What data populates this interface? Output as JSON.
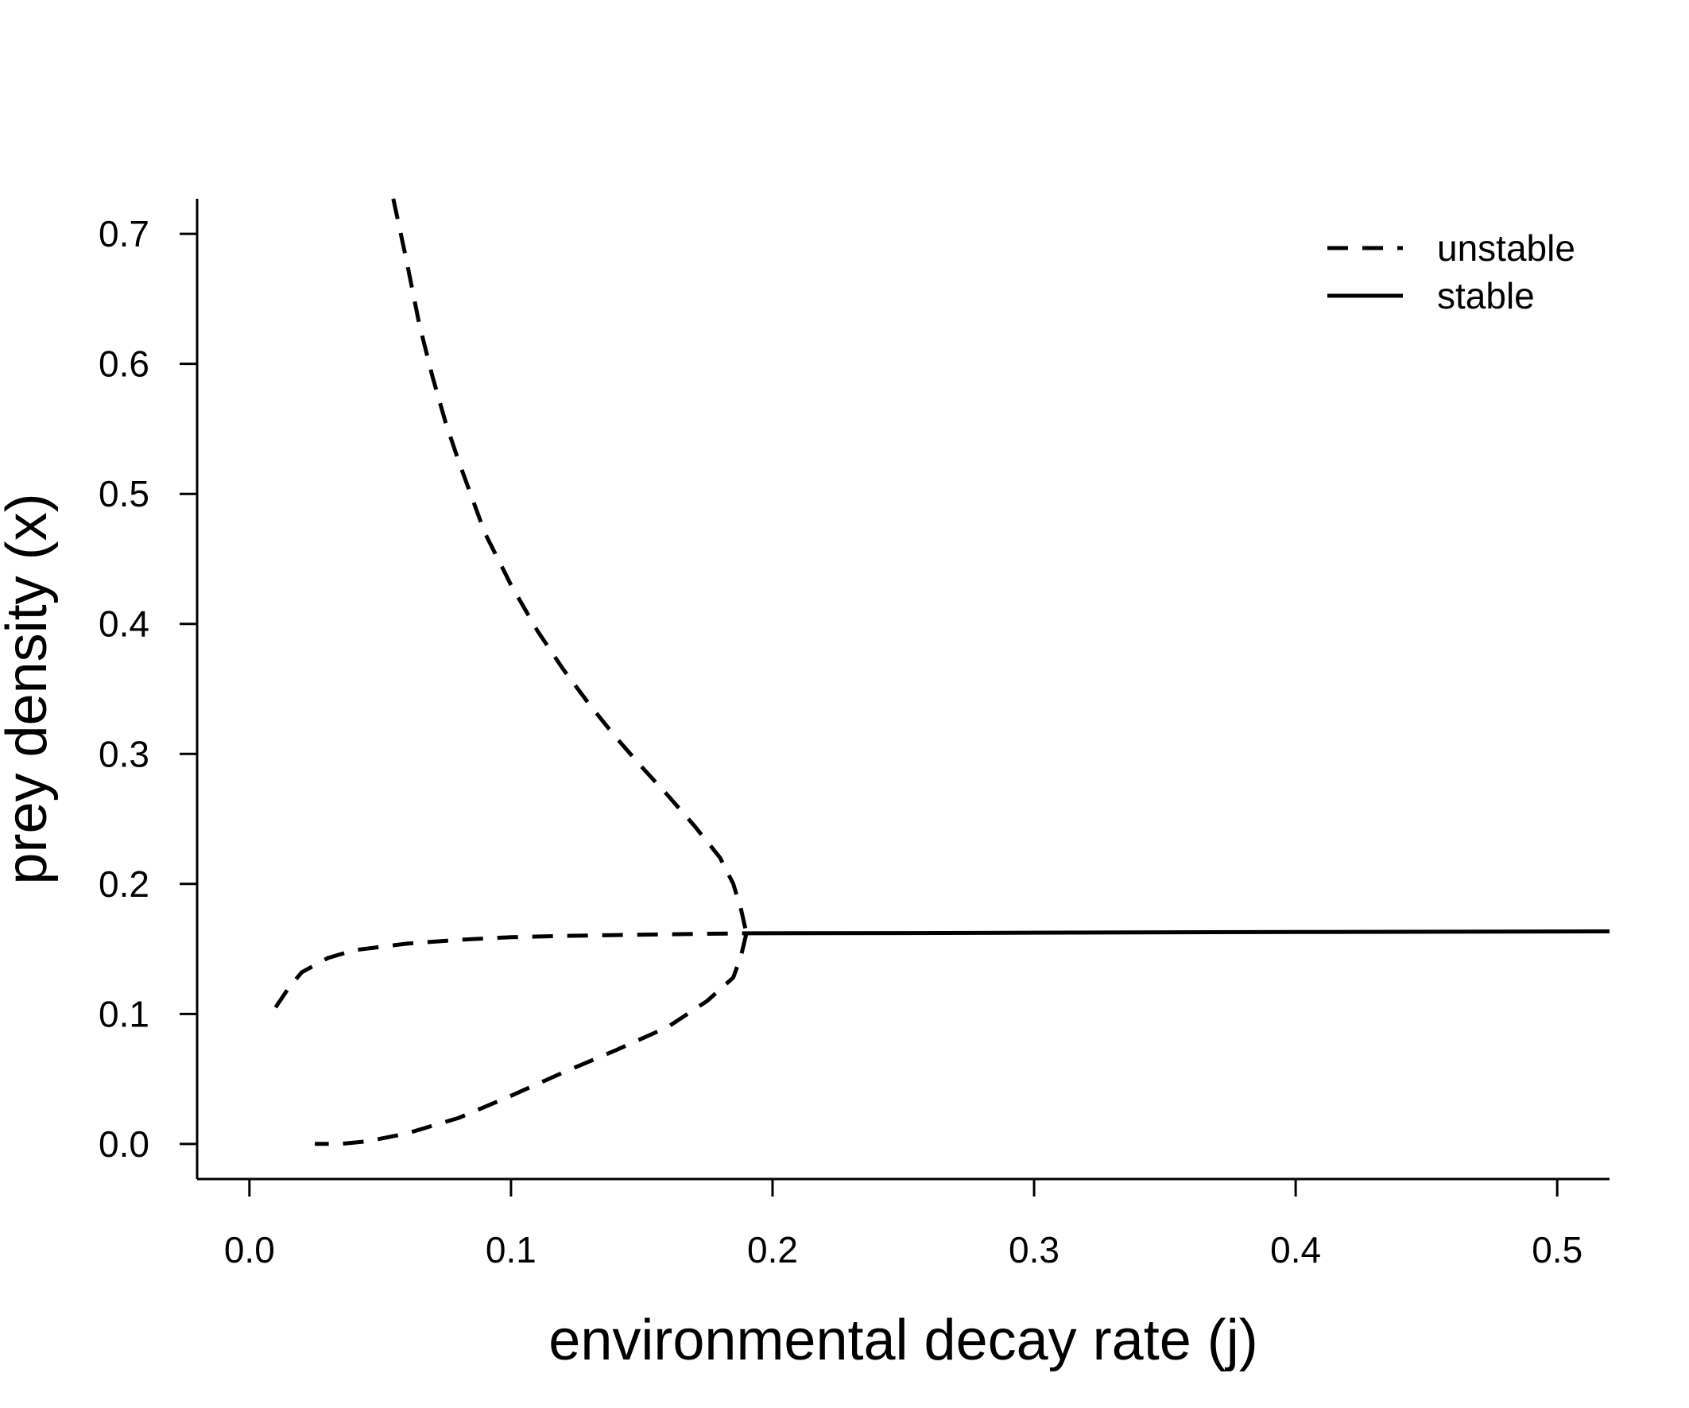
{
  "chart_data": {
    "type": "line",
    "title": "",
    "xlabel": "environmental decay rate (j)",
    "ylabel": "prey density (x)",
    "xlim": [
      -0.02,
      0.52
    ],
    "ylim": [
      -0.027,
      0.727
    ],
    "x_ticks": [
      "0.0",
      "0.1",
      "0.2",
      "0.3",
      "0.4",
      "0.5"
    ],
    "y_ticks": [
      "0.0",
      "0.1",
      "0.2",
      "0.3",
      "0.4",
      "0.5",
      "0.6",
      "0.7"
    ],
    "grid": false,
    "legend": {
      "position": "top-right",
      "entries": [
        {
          "label": "unstable",
          "style": "dashed"
        },
        {
          "label": "stable",
          "style": "solid"
        }
      ]
    },
    "colors": {
      "line": "#000000",
      "background": "#ffffff"
    },
    "series": [
      {
        "style": "dashed",
        "points": [
          [
            0.055,
            0.727
          ],
          [
            0.06,
            0.68
          ],
          [
            0.065,
            0.63
          ],
          [
            0.07,
            0.59
          ],
          [
            0.075,
            0.555
          ],
          [
            0.08,
            0.525
          ],
          [
            0.09,
            0.47
          ],
          [
            0.1,
            0.43
          ],
          [
            0.11,
            0.395
          ],
          [
            0.12,
            0.365
          ],
          [
            0.13,
            0.338
          ],
          [
            0.14,
            0.313
          ],
          [
            0.15,
            0.29
          ],
          [
            0.16,
            0.268
          ],
          [
            0.17,
            0.245
          ],
          [
            0.18,
            0.22
          ],
          [
            0.185,
            0.2
          ],
          [
            0.188,
            0.18
          ],
          [
            0.19,
            0.162
          ]
        ]
      },
      {
        "style": "dashed",
        "points": [
          [
            0.19,
            0.162
          ],
          [
            0.188,
            0.145
          ],
          [
            0.185,
            0.128
          ],
          [
            0.175,
            0.11
          ],
          [
            0.16,
            0.09
          ],
          [
            0.14,
            0.072
          ],
          [
            0.12,
            0.055
          ],
          [
            0.1,
            0.037
          ],
          [
            0.08,
            0.02
          ],
          [
            0.06,
            0.008
          ],
          [
            0.045,
            0.002
          ],
          [
            0.035,
            0.0
          ],
          [
            0.025,
            0.0
          ]
        ]
      },
      {
        "style": "dashed",
        "points": [
          [
            0.01,
            0.105
          ],
          [
            0.015,
            0.12
          ],
          [
            0.02,
            0.132
          ],
          [
            0.03,
            0.143
          ],
          [
            0.04,
            0.149
          ],
          [
            0.06,
            0.154
          ],
          [
            0.08,
            0.157
          ],
          [
            0.1,
            0.159
          ],
          [
            0.12,
            0.16
          ],
          [
            0.15,
            0.161
          ],
          [
            0.19,
            0.162
          ]
        ]
      },
      {
        "style": "solid",
        "points": [
          [
            0.19,
            0.162
          ],
          [
            0.25,
            0.1622
          ],
          [
            0.3,
            0.1625
          ],
          [
            0.4,
            0.163
          ],
          [
            0.52,
            0.1635
          ]
        ]
      }
    ]
  }
}
